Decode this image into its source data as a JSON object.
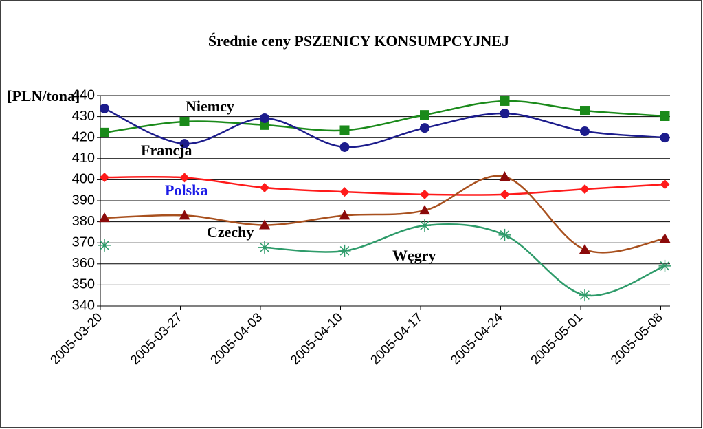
{
  "chart_data": {
    "type": "line",
    "title": "Średnie ceny PSZENICY KONSUMPCYJNEJ",
    "y_label": "[PLN/tona]",
    "categories": [
      "2005-03-20",
      "2005-03-27",
      "2005-04-03",
      "2005-04-10",
      "2005-04-17",
      "2005-04-24",
      "2005-05-01",
      "2005-05-08"
    ],
    "series": [
      {
        "name": "Niemcy",
        "color": "#1a8a1a",
        "marker": "square",
        "values": [
          422.4,
          427.6,
          426,
          423.5,
          430.8,
          437.4,
          432.8,
          430.2
        ]
      },
      {
        "name": "Francja",
        "color": "#1c1c8c",
        "marker": "circle",
        "values": [
          433.8,
          417.1,
          429.2,
          415.5,
          424.6,
          431.5,
          423,
          420
        ]
      },
      {
        "name": "Polska",
        "color": "#ff1a1a",
        "marker": "diamond",
        "values": [
          401.1,
          401,
          396.2,
          394.2,
          393,
          393,
          395.5,
          397.8
        ]
      },
      {
        "name": "Czechy",
        "color": "#a8501e",
        "marker": "triangle",
        "values": [
          381.8,
          383,
          378.4,
          383,
          385.4,
          401.4,
          366.8,
          372
        ]
      },
      {
        "name": "Węgry",
        "color": "#2e9b6a",
        "marker": "star",
        "values": [
          368.8,
          null,
          367.8,
          366.2,
          378.2,
          373.7,
          345.2,
          359
        ]
      }
    ],
    "ylim": [
      340,
      440
    ],
    "yticks": [
      340,
      350,
      360,
      370,
      380,
      390,
      400,
      410,
      420,
      430,
      440
    ],
    "grid": true
  }
}
